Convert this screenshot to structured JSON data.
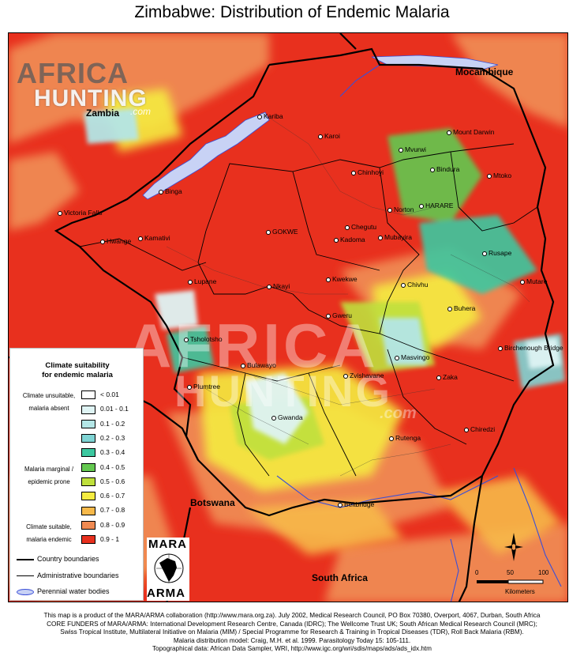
{
  "title": "Zimbabwe: Distribution of Endemic Malaria",
  "watermark": {
    "logo_line_1": "AFRICA",
    "logo_line_2": "HUNTING",
    "logo_suffix": ".com"
  },
  "country_labels": {
    "zambia": "Zambia",
    "mozambique": "Mocambique",
    "botswana": "Botswana",
    "south_africa": "South Africa"
  },
  "places": [
    {
      "name": "Kariba"
    },
    {
      "name": "Karoi"
    },
    {
      "name": "Mount Darwin"
    },
    {
      "name": "Mvurwi"
    },
    {
      "name": "Bindura"
    },
    {
      "name": "Chinhoyi"
    },
    {
      "name": "Mtoko"
    },
    {
      "name": "Binga"
    },
    {
      "name": "Norton"
    },
    {
      "name": "HARARE"
    },
    {
      "name": "Victoria Falls"
    },
    {
      "name": "Chegutu"
    },
    {
      "name": "Kamativi"
    },
    {
      "name": "GOKWE"
    },
    {
      "name": "Mubayira"
    },
    {
      "name": "Hwange"
    },
    {
      "name": "Kadoma"
    },
    {
      "name": "Rusape"
    },
    {
      "name": "Kwekwe"
    },
    {
      "name": "Lupane"
    },
    {
      "name": "Nkayi"
    },
    {
      "name": "Chivhu"
    },
    {
      "name": "Mutare"
    },
    {
      "name": "Buhera"
    },
    {
      "name": "Gweru"
    },
    {
      "name": "Tsholotsho"
    },
    {
      "name": "Birchenough Bridge"
    },
    {
      "name": "Masvingo"
    },
    {
      "name": "Bulawayo"
    },
    {
      "name": "Zvishavane"
    },
    {
      "name": "Zaka"
    },
    {
      "name": "Plumtree"
    },
    {
      "name": "Gwanda"
    },
    {
      "name": "Chiredzi"
    },
    {
      "name": "Rutenga"
    },
    {
      "name": "Beitbridge"
    }
  ],
  "legend": {
    "title_line_1": "Climate suitability",
    "title_line_2": "for endemic malaria",
    "groups": [
      {
        "line_1": "Climate unsuitable,",
        "line_2": "malaria absent"
      },
      {
        "line_1": "Malaria marginal /",
        "line_2": "epidemic prone"
      },
      {
        "line_1": "Climate suitable,",
        "line_2": "malaria endemic"
      }
    ],
    "classes": [
      {
        "label": "< 0.01",
        "color": "#ffffff"
      },
      {
        "label": "0.01 - 0.1",
        "color": "#dff4f4"
      },
      {
        "label": "0.1 - 0.2",
        "color": "#b4e6e6"
      },
      {
        "label": "0.2 - 0.3",
        "color": "#7fd4d4"
      },
      {
        "label": "0.3 - 0.4",
        "color": "#3cc8a0"
      },
      {
        "label": "0.4 - 0.5",
        "color": "#64c850"
      },
      {
        "label": "0.5 - 0.6",
        "color": "#bfe03c"
      },
      {
        "label": "0.6 - 0.7",
        "color": "#f5ec41"
      },
      {
        "label": "0.7 - 0.8",
        "color": "#f7b94a"
      },
      {
        "label": "0.8 - 0.9",
        "color": "#f08a52"
      },
      {
        "label": "0.9 - 1",
        "color": "#e8301e"
      }
    ],
    "lines": [
      {
        "label": "Country boundaries"
      },
      {
        "label": "Administrative boundaries"
      },
      {
        "label": "Perennial water bodies"
      }
    ]
  },
  "mara_logo": {
    "top": "MARA",
    "bottom": "ARMA"
  },
  "scalebar": {
    "ticks": [
      "0",
      "50",
      "100"
    ],
    "unit": "Kilometers"
  },
  "footer": {
    "line_1": "This map is a product of the MARA/ARMA collaboration (http://www.mara.org.za).  July 2002, Medical Research Council, PO Box 70380, Overport, 4067, Durban, South Africa",
    "line_2": "CORE FUNDERS of MARA/ARMA: International Development Research Centre, Canada (IDRC); The Wellcome Trust UK; South African Medical Research Council (MRC);",
    "line_3": "Swiss Tropical Institute, Multilateral Initiative on Malaria (MIM) / Special Programme for Research & Training in Tropical Diseases (TDR), Roll Back Malaria (RBM).",
    "line_4": "Malaria distribution model: Craig, M.H. et al. 1999.  Parasitology Today 15: 105-111.",
    "line_5": "Topographical data: African Data Sampler, WRI, http://www.igc.org/wri/sdis/maps/ads/ads_idx.htm"
  },
  "colors": {
    "land_high": "#e8301e",
    "land_orange": "#f08a52",
    "water": "#c8d2f5",
    "river": "#3a4fd8"
  }
}
